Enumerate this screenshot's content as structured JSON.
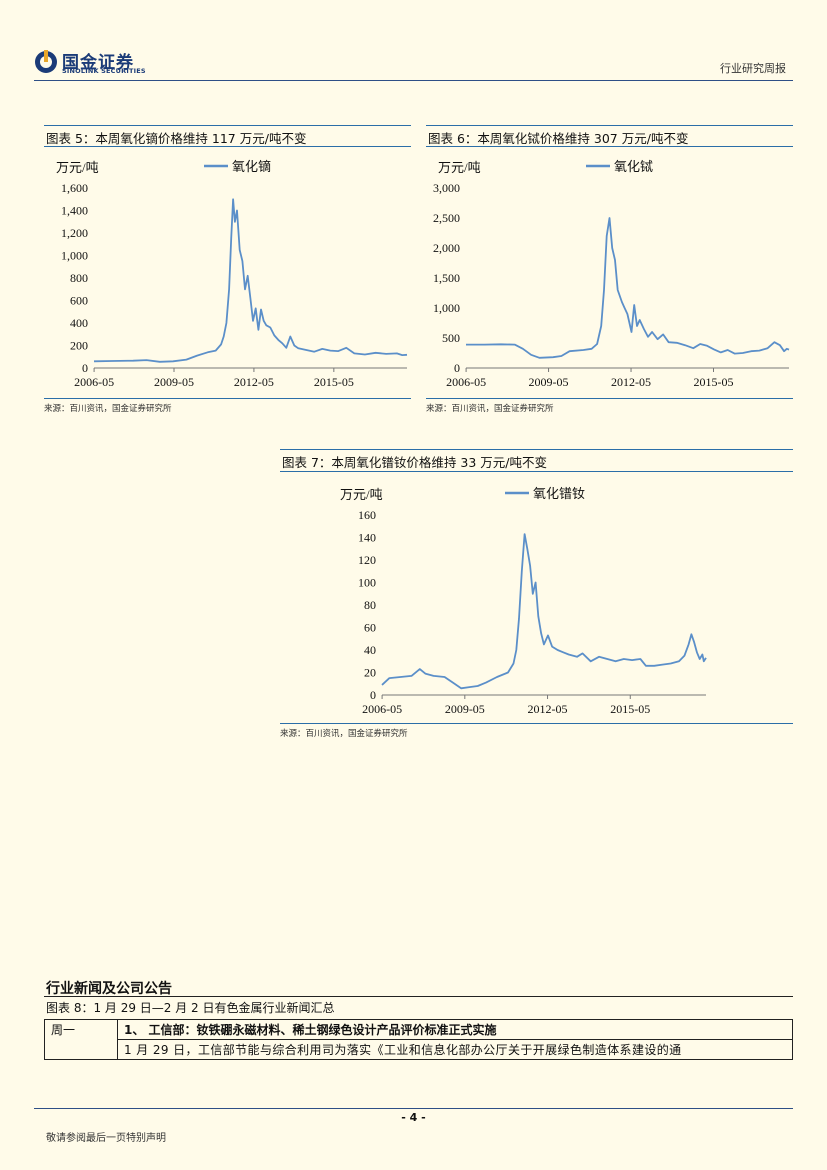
{
  "header": {
    "brand_cn": "国金证券",
    "brand_en": "SINOLINK SECURITIES",
    "report_type": "行业研究周报",
    "brand_color": "#1b3b78",
    "accent_color": "#2e4f86"
  },
  "figures": [
    {
      "title": "图表 5：本周氧化镝价格维持 117 万元/吨不变",
      "source": "来源：百川资讯，国金证券研究所"
    },
    {
      "title": "图表 6：本周氧化铽价格维持 307 万元/吨不变",
      "source": "来源：百川资讯，国金证券研究所"
    },
    {
      "title": "图表 7：本周氧化镨钕价格维持 33 万元/吨不变",
      "source": "来源：百川资讯，国金证券研究所"
    }
  ],
  "chart_data": [
    {
      "type": "line",
      "unit_label": "万元/吨",
      "series_color": "#5b8fc9",
      "x_ticks": [
        "2006-05",
        "2009-05",
        "2012-05",
        "2015-05"
      ],
      "y_ticks": [
        "0",
        "200",
        "400",
        "600",
        "800",
        "1,000",
        "1,200",
        "1,400",
        "1,600"
      ],
      "ylim": [
        0,
        1600
      ],
      "xlim": [
        2006.33,
        2018.08
      ],
      "grid": false,
      "series": [
        {
          "name": "氧化镝",
          "points": [
            [
              2006.33,
              60
            ],
            [
              2007.0,
              62
            ],
            [
              2007.8,
              65
            ],
            [
              2008.3,
              70
            ],
            [
              2008.8,
              55
            ],
            [
              2009.3,
              60
            ],
            [
              2009.8,
              75
            ],
            [
              2010.2,
              110
            ],
            [
              2010.6,
              140
            ],
            [
              2010.9,
              155
            ],
            [
              2011.1,
              210
            ],
            [
              2011.2,
              280
            ],
            [
              2011.3,
              400
            ],
            [
              2011.4,
              700
            ],
            [
              2011.48,
              1150
            ],
            [
              2011.55,
              1500
            ],
            [
              2011.62,
              1300
            ],
            [
              2011.7,
              1400
            ],
            [
              2011.8,
              1050
            ],
            [
              2011.9,
              950
            ],
            [
              2012.0,
              700
            ],
            [
              2012.1,
              820
            ],
            [
              2012.2,
              620
            ],
            [
              2012.3,
              420
            ],
            [
              2012.4,
              530
            ],
            [
              2012.5,
              340
            ],
            [
              2012.6,
              520
            ],
            [
              2012.7,
              420
            ],
            [
              2012.8,
              380
            ],
            [
              2012.95,
              360
            ],
            [
              2013.1,
              290
            ],
            [
              2013.25,
              250
            ],
            [
              2013.4,
              220
            ],
            [
              2013.55,
              180
            ],
            [
              2013.7,
              280
            ],
            [
              2013.85,
              200
            ],
            [
              2014.0,
              175
            ],
            [
              2014.3,
              160
            ],
            [
              2014.6,
              145
            ],
            [
              2014.9,
              170
            ],
            [
              2015.2,
              155
            ],
            [
              2015.5,
              150
            ],
            [
              2015.8,
              180
            ],
            [
              2016.1,
              130
            ],
            [
              2016.5,
              120
            ],
            [
              2016.9,
              135
            ],
            [
              2017.3,
              125
            ],
            [
              2017.7,
              130
            ],
            [
              2017.9,
              115
            ],
            [
              2018.08,
              117
            ]
          ]
        }
      ]
    },
    {
      "type": "line",
      "unit_label": "万元/吨",
      "series_color": "#5b8fc9",
      "x_ticks": [
        "2006-05",
        "2009-05",
        "2012-05",
        "2015-05"
      ],
      "y_ticks": [
        "0",
        "500",
        "1,000",
        "1,500",
        "2,000",
        "2,500",
        "3,000"
      ],
      "ylim": [
        0,
        3000
      ],
      "xlim": [
        2006.33,
        2018.08
      ],
      "grid": false,
      "series": [
        {
          "name": "氧化铽",
          "points": [
            [
              2006.33,
              390
            ],
            [
              2007.0,
              390
            ],
            [
              2007.6,
              395
            ],
            [
              2008.1,
              390
            ],
            [
              2008.4,
              320
            ],
            [
              2008.7,
              220
            ],
            [
              2009.0,
              170
            ],
            [
              2009.5,
              180
            ],
            [
              2009.8,
              200
            ],
            [
              2010.1,
              280
            ],
            [
              2010.6,
              300
            ],
            [
              2010.9,
              320
            ],
            [
              2011.1,
              400
            ],
            [
              2011.25,
              700
            ],
            [
              2011.35,
              1300
            ],
            [
              2011.45,
              2200
            ],
            [
              2011.55,
              2500
            ],
            [
              2011.65,
              2000
            ],
            [
              2011.75,
              1800
            ],
            [
              2011.85,
              1300
            ],
            [
              2012.0,
              1100
            ],
            [
              2012.1,
              1000
            ],
            [
              2012.2,
              900
            ],
            [
              2012.35,
              600
            ],
            [
              2012.45,
              1050
            ],
            [
              2012.55,
              700
            ],
            [
              2012.65,
              800
            ],
            [
              2012.8,
              650
            ],
            [
              2012.95,
              520
            ],
            [
              2013.1,
              600
            ],
            [
              2013.3,
              480
            ],
            [
              2013.5,
              560
            ],
            [
              2013.7,
              430
            ],
            [
              2014.0,
              420
            ],
            [
              2014.3,
              380
            ],
            [
              2014.6,
              330
            ],
            [
              2014.85,
              400
            ],
            [
              2015.1,
              370
            ],
            [
              2015.35,
              310
            ],
            [
              2015.6,
              260
            ],
            [
              2015.85,
              300
            ],
            [
              2016.1,
              240
            ],
            [
              2016.4,
              250
            ],
            [
              2016.7,
              280
            ],
            [
              2017.0,
              290
            ],
            [
              2017.3,
              330
            ],
            [
              2017.55,
              430
            ],
            [
              2017.75,
              380
            ],
            [
              2017.9,
              280
            ],
            [
              2018.0,
              320
            ],
            [
              2018.08,
              307
            ]
          ]
        }
      ]
    },
    {
      "type": "line",
      "unit_label": "万元/吨",
      "series_color": "#5b8fc9",
      "x_ticks": [
        "2006-05",
        "2009-05",
        "2012-05",
        "2015-05"
      ],
      "y_ticks": [
        "0",
        "20",
        "40",
        "60",
        "80",
        "100",
        "120",
        "140",
        "160"
      ],
      "ylim": [
        0,
        160
      ],
      "xlim": [
        2006.33,
        2018.08
      ],
      "grid": false,
      "series": [
        {
          "name": "氧化镨钕",
          "points": [
            [
              2006.33,
              9
            ],
            [
              2006.6,
              15
            ],
            [
              2007.0,
              16
            ],
            [
              2007.4,
              17
            ],
            [
              2007.7,
              23
            ],
            [
              2007.9,
              19
            ],
            [
              2008.2,
              17
            ],
            [
              2008.6,
              16
            ],
            [
              2008.9,
              11
            ],
            [
              2009.2,
              6
            ],
            [
              2009.5,
              7
            ],
            [
              2009.8,
              8
            ],
            [
              2010.1,
              11
            ],
            [
              2010.5,
              16
            ],
            [
              2010.9,
              20
            ],
            [
              2011.1,
              28
            ],
            [
              2011.2,
              40
            ],
            [
              2011.3,
              68
            ],
            [
              2011.4,
              110
            ],
            [
              2011.5,
              143
            ],
            [
              2011.6,
              130
            ],
            [
              2011.7,
              115
            ],
            [
              2011.8,
              90
            ],
            [
              2011.9,
              100
            ],
            [
              2012.0,
              70
            ],
            [
              2012.1,
              55
            ],
            [
              2012.2,
              45
            ],
            [
              2012.35,
              53
            ],
            [
              2012.5,
              43
            ],
            [
              2012.7,
              40
            ],
            [
              2012.9,
              38
            ],
            [
              2013.1,
              36
            ],
            [
              2013.4,
              34
            ],
            [
              2013.6,
              37
            ],
            [
              2013.9,
              30
            ],
            [
              2014.2,
              34
            ],
            [
              2014.5,
              32
            ],
            [
              2014.8,
              30
            ],
            [
              2015.1,
              32
            ],
            [
              2015.4,
              31
            ],
            [
              2015.7,
              32
            ],
            [
              2015.9,
              26
            ],
            [
              2016.2,
              26
            ],
            [
              2016.5,
              27
            ],
            [
              2016.8,
              28
            ],
            [
              2017.1,
              30
            ],
            [
              2017.3,
              35
            ],
            [
              2017.45,
              45
            ],
            [
              2017.55,
              54
            ],
            [
              2017.65,
              47
            ],
            [
              2017.75,
              38
            ],
            [
              2017.85,
              32
            ],
            [
              2017.95,
              36
            ],
            [
              2018.0,
              30
            ],
            [
              2018.08,
              33
            ]
          ]
        }
      ]
    }
  ],
  "news_section": {
    "title": "行业新闻及公司公告",
    "table_title": "图表 8：1 月 29 日—2 月 2 日有色金属行业新闻汇总",
    "rows": [
      {
        "day": "周一",
        "headline": "1、 工信部：钕铁硼永磁材料、稀土钢绿色设计产品评价标准正式实施",
        "text": "1 月 29 日，工信部节能与综合利用司为落实《工业和信息化部办公厅关于开展绿色制造体系建设的通"
      }
    ]
  },
  "footer": {
    "page_number": "- 4 -",
    "disclaimer": "敬请参阅最后一页特别声明"
  }
}
